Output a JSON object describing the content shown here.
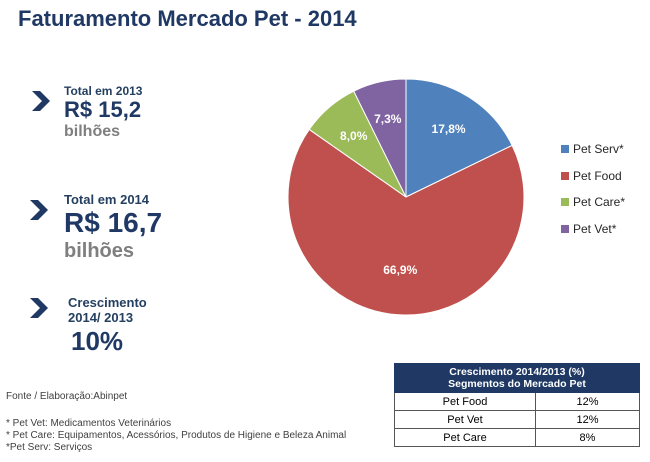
{
  "title": "Faturamento Mercado Pet - 2014",
  "stats": [
    {
      "label": "Total em 2013",
      "value": "R$ 15,2",
      "unit": "bilhões"
    },
    {
      "label": "Total em 2014",
      "value": "R$ 16,7",
      "unit": "bilhões"
    },
    {
      "label_line1": "Crescimento",
      "label_line2": "2014/ 2013",
      "value": "10%"
    }
  ],
  "source": "Fonte / Elaboração:Abinpet",
  "notes": [
    "* Pet Vet: Medicamentos Veterinários",
    "* Pet Care:  Equipamentos, Acessórios, Produtos de Higiene e Beleza Animal",
    "*Pet Serv:  Serviços"
  ],
  "colors": {
    "title": "#1f3864",
    "accent": "#1f3864"
  },
  "chart_data": {
    "type": "pie",
    "title": "Faturamento Mercado Pet - 2014",
    "categories": [
      "Pet Serv*",
      "Pet Food",
      "Pet Care*",
      "Pet Vet*"
    ],
    "values": [
      17.8,
      66.9,
      8.0,
      7.3
    ],
    "value_labels": [
      "17,8%",
      "66,9%",
      "8,0%",
      "7,3%"
    ],
    "colors": [
      "#4f81bd",
      "#c0504d",
      "#9bbb59",
      "#8064a2"
    ],
    "legend_position": "right"
  },
  "table": {
    "header_line1": "Crescimento 2014/2013 (%)",
    "header_line2": "Segmentos do Mercado Pet",
    "rows": [
      {
        "segment": "Pet Food",
        "value": "12%"
      },
      {
        "segment": "Pet Vet",
        "value": "12%"
      },
      {
        "segment": "Pet Care",
        "value": "8%"
      }
    ]
  }
}
